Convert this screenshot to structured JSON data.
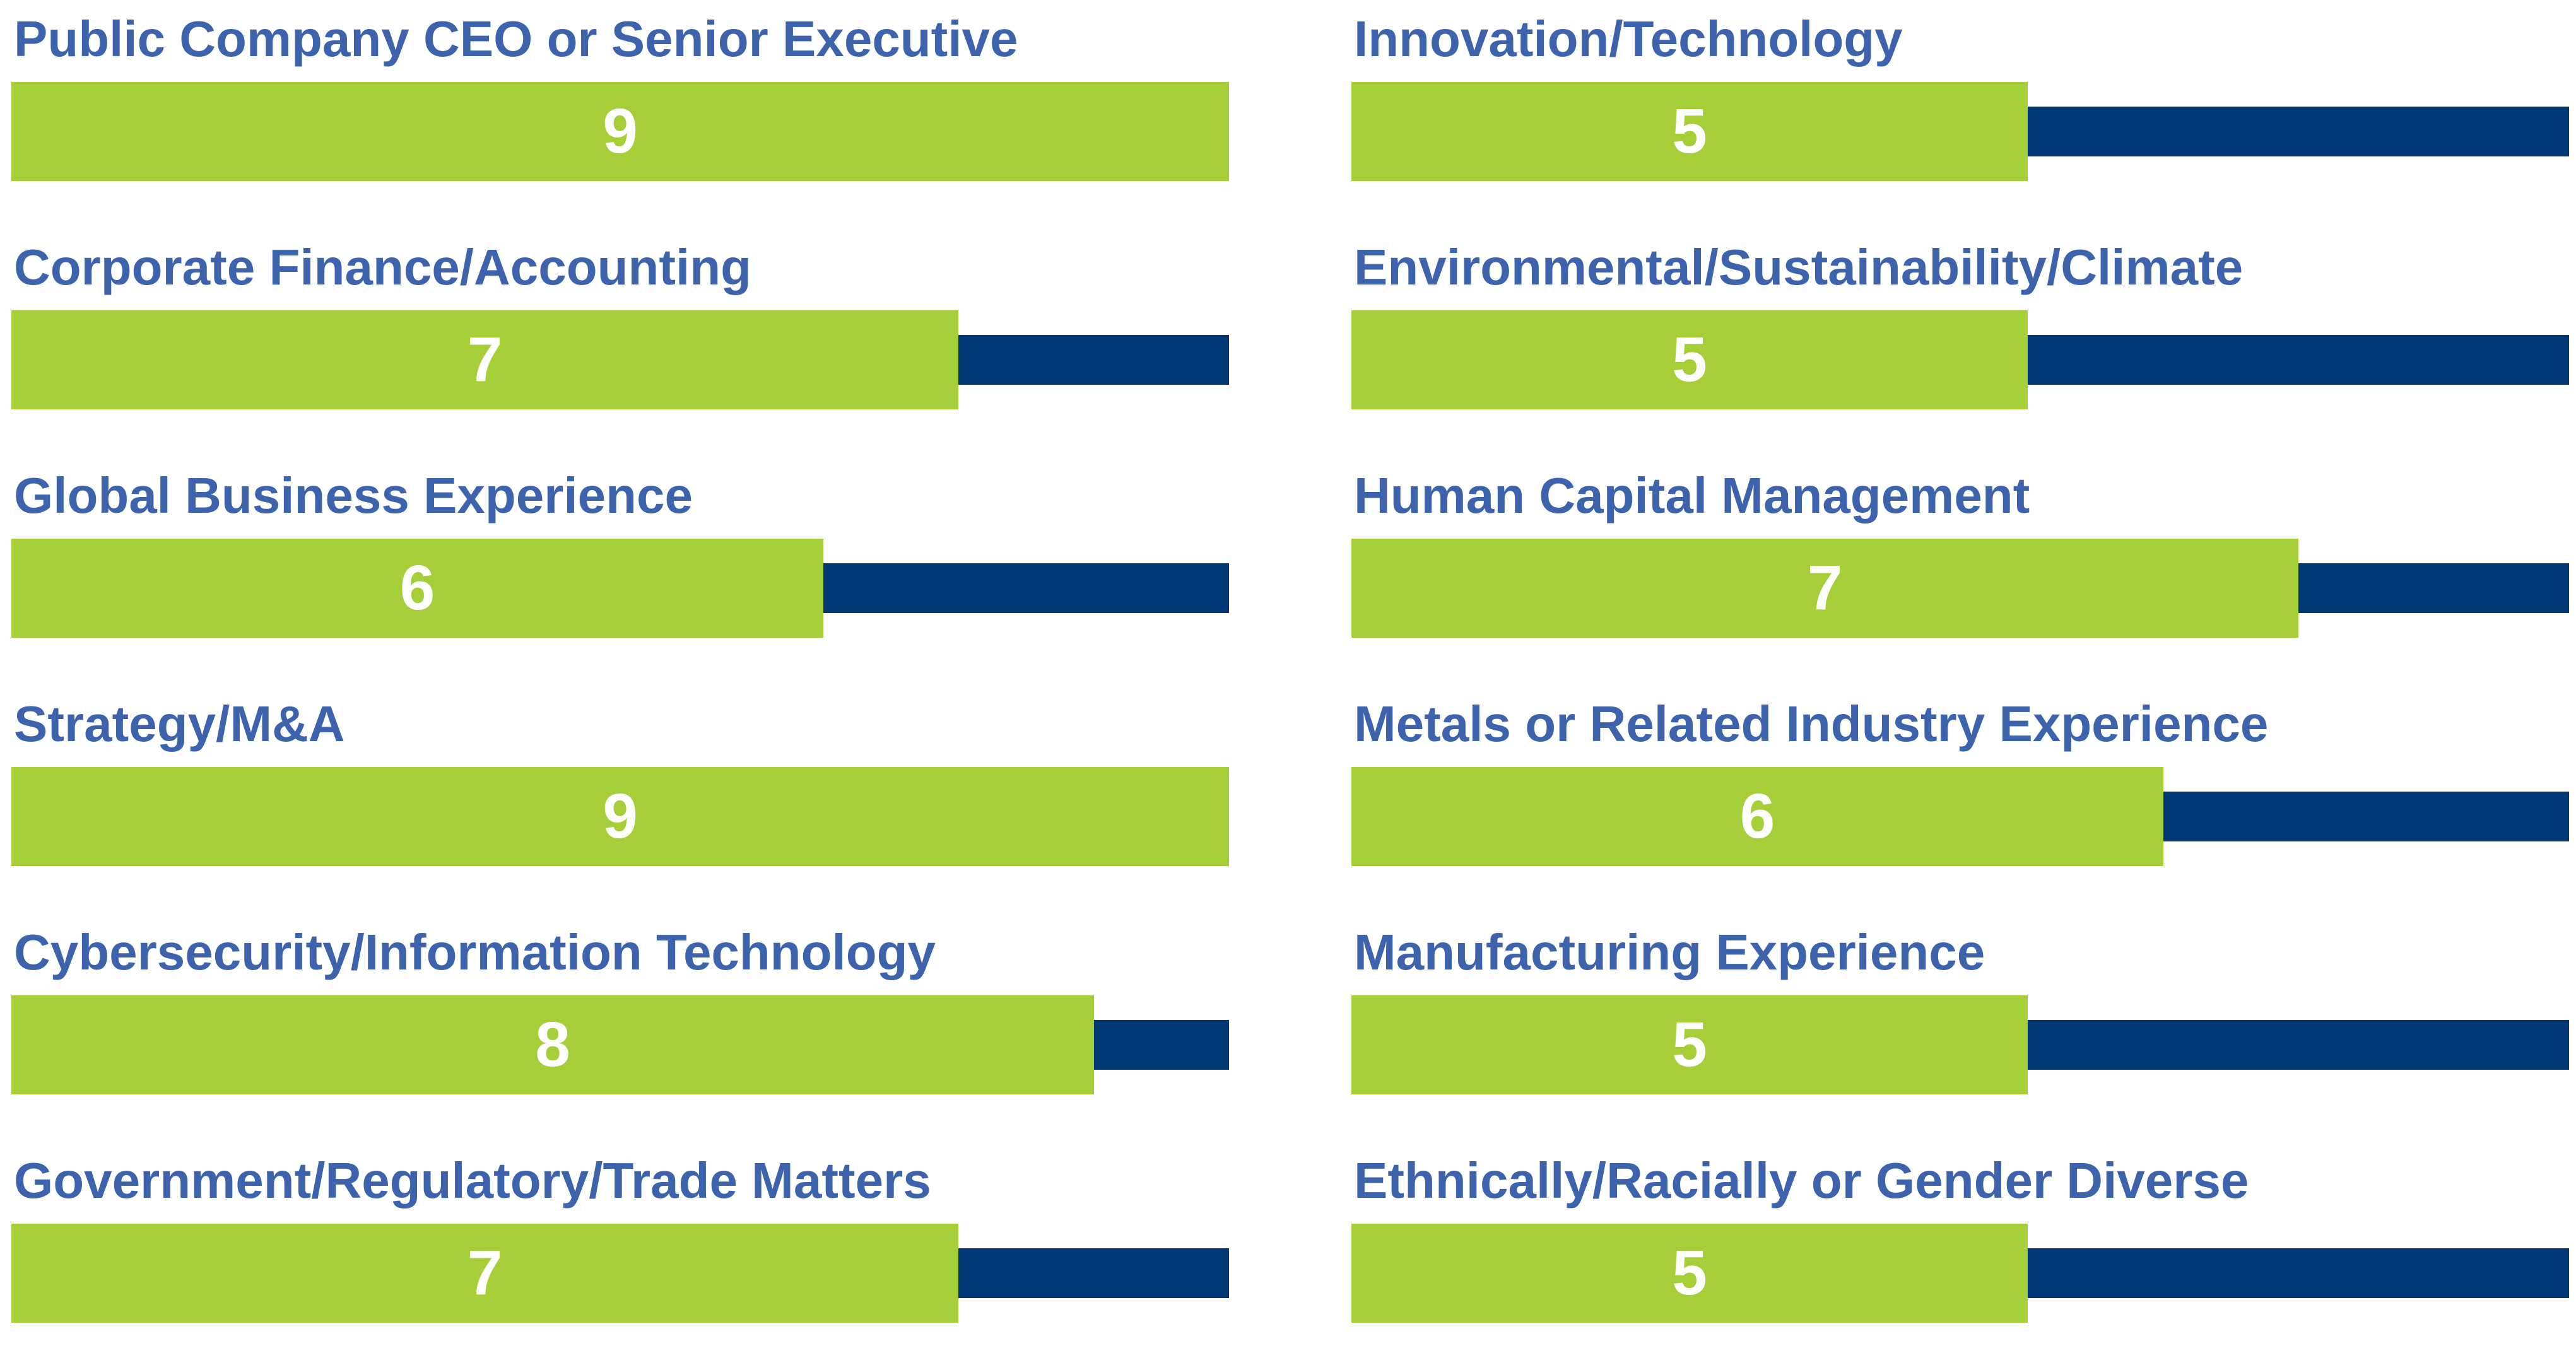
{
  "chart_data": {
    "type": "bar",
    "orientation": "horizontal",
    "max": 9,
    "colors": {
      "label": "#3d63ad",
      "fill": "#a6ce39",
      "track": "#003876",
      "value_text": "#ffffff"
    },
    "columns": [
      {
        "items": [
          {
            "label": "Public Company CEO or Senior Executive",
            "value": 9
          },
          {
            "label": "Corporate Finance/Accounting",
            "value": 7
          },
          {
            "label": "Global Business Experience",
            "value": 6
          },
          {
            "label": "Strategy/M&A",
            "value": 9
          },
          {
            "label": "Cybersecurity/Information Technology",
            "value": 8
          },
          {
            "label": "Government/Regulatory/Trade Matters",
            "value": 7
          }
        ]
      },
      {
        "items": [
          {
            "label": "Innovation/Technology",
            "value": 5
          },
          {
            "label": "Environmental/Sustainability/Climate",
            "value": 5
          },
          {
            "label": "Human Capital Management",
            "value": 7
          },
          {
            "label": "Metals or Related Industry Experience",
            "value": 6
          },
          {
            "label": "Manufacturing Experience",
            "value": 5
          },
          {
            "label": "Ethnically/Racially or Gender Diverse",
            "value": 5
          }
        ]
      }
    ]
  }
}
